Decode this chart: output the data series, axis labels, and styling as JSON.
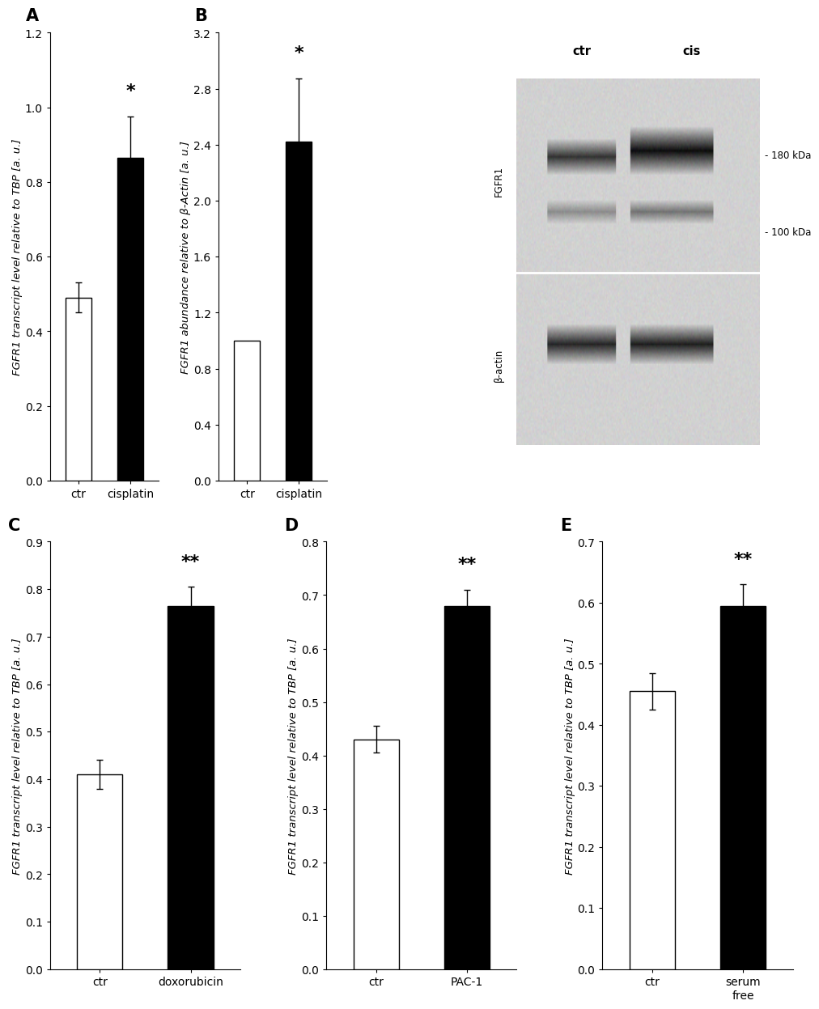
{
  "panel_A": {
    "categories": [
      "ctr",
      "cisplatin"
    ],
    "values": [
      0.49,
      0.865
    ],
    "errors": [
      0.04,
      0.11
    ],
    "colors": [
      "white",
      "black"
    ],
    "ylim": [
      0,
      1.2
    ],
    "yticks": [
      0.0,
      0.2,
      0.4,
      0.6,
      0.8,
      1.0,
      1.2
    ],
    "ylabel": "FGFR1 transcript level relative to TBP [a. u.]",
    "significance": "*",
    "sig_bar_idx": 1,
    "label": "A"
  },
  "panel_B": {
    "categories": [
      "ctr",
      "cisplatin"
    ],
    "values": [
      1.0,
      2.42
    ],
    "errors": [
      0.0,
      0.45
    ],
    "colors": [
      "white",
      "black"
    ],
    "ylim": [
      0,
      3.2
    ],
    "yticks": [
      0.0,
      0.4,
      0.8,
      1.2,
      1.6,
      2.0,
      2.4,
      2.8,
      3.2
    ],
    "ylabel": "FGFR1 abundance relative to β-Actin [a. u.]",
    "significance": "*",
    "sig_bar_idx": 1,
    "label": "B"
  },
  "panel_C": {
    "categories": [
      "ctr",
      "doxorubicin"
    ],
    "values": [
      0.41,
      0.765
    ],
    "errors": [
      0.03,
      0.04
    ],
    "colors": [
      "white",
      "black"
    ],
    "ylim": [
      0,
      0.9
    ],
    "yticks": [
      0.0,
      0.1,
      0.2,
      0.3,
      0.4,
      0.5,
      0.6,
      0.7,
      0.8,
      0.9
    ],
    "ylabel": "FGFR1 transcript level relative to TBP [a. u.]",
    "significance": "**",
    "sig_bar_idx": 1,
    "label": "C"
  },
  "panel_D": {
    "categories": [
      "ctr",
      "PAC-1"
    ],
    "values": [
      0.43,
      0.68
    ],
    "errors": [
      0.025,
      0.03
    ],
    "colors": [
      "white",
      "black"
    ],
    "ylim": [
      0,
      0.8
    ],
    "yticks": [
      0.0,
      0.1,
      0.2,
      0.3,
      0.4,
      0.5,
      0.6,
      0.7,
      0.8
    ],
    "ylabel": "FGFR1 transcript level relative to TBP [a. u.]",
    "significance": "**",
    "sig_bar_idx": 1,
    "label": "D"
  },
  "panel_E": {
    "categories": [
      "ctr",
      "serum\nfree"
    ],
    "values": [
      0.455,
      0.595
    ],
    "errors": [
      0.03,
      0.035
    ],
    "colors": [
      "white",
      "black"
    ],
    "ylim": [
      0,
      0.7
    ],
    "yticks": [
      0.0,
      0.1,
      0.2,
      0.3,
      0.4,
      0.5,
      0.6,
      0.7
    ],
    "ylabel": "FGFR1 transcript level relative to TBP [a. u.]",
    "significance": "**",
    "sig_bar_idx": 1,
    "label": "E"
  },
  "bar_width": 0.5,
  "edgecolor": "black",
  "errorbar_capsize": 3,
  "errorbar_linewidth": 1.0,
  "tick_fontsize": 10,
  "panel_label_fontsize": 15,
  "sig_fontsize": 16,
  "ylabel_fontsize": 9.5,
  "wb": {
    "ctr_label": "ctr",
    "cis_label": "cis",
    "fgfr1_label": "FGFR1",
    "bactin_label": "β-actin",
    "kda180": "- 180 kDa",
    "kda100": "- 100 kDa"
  }
}
